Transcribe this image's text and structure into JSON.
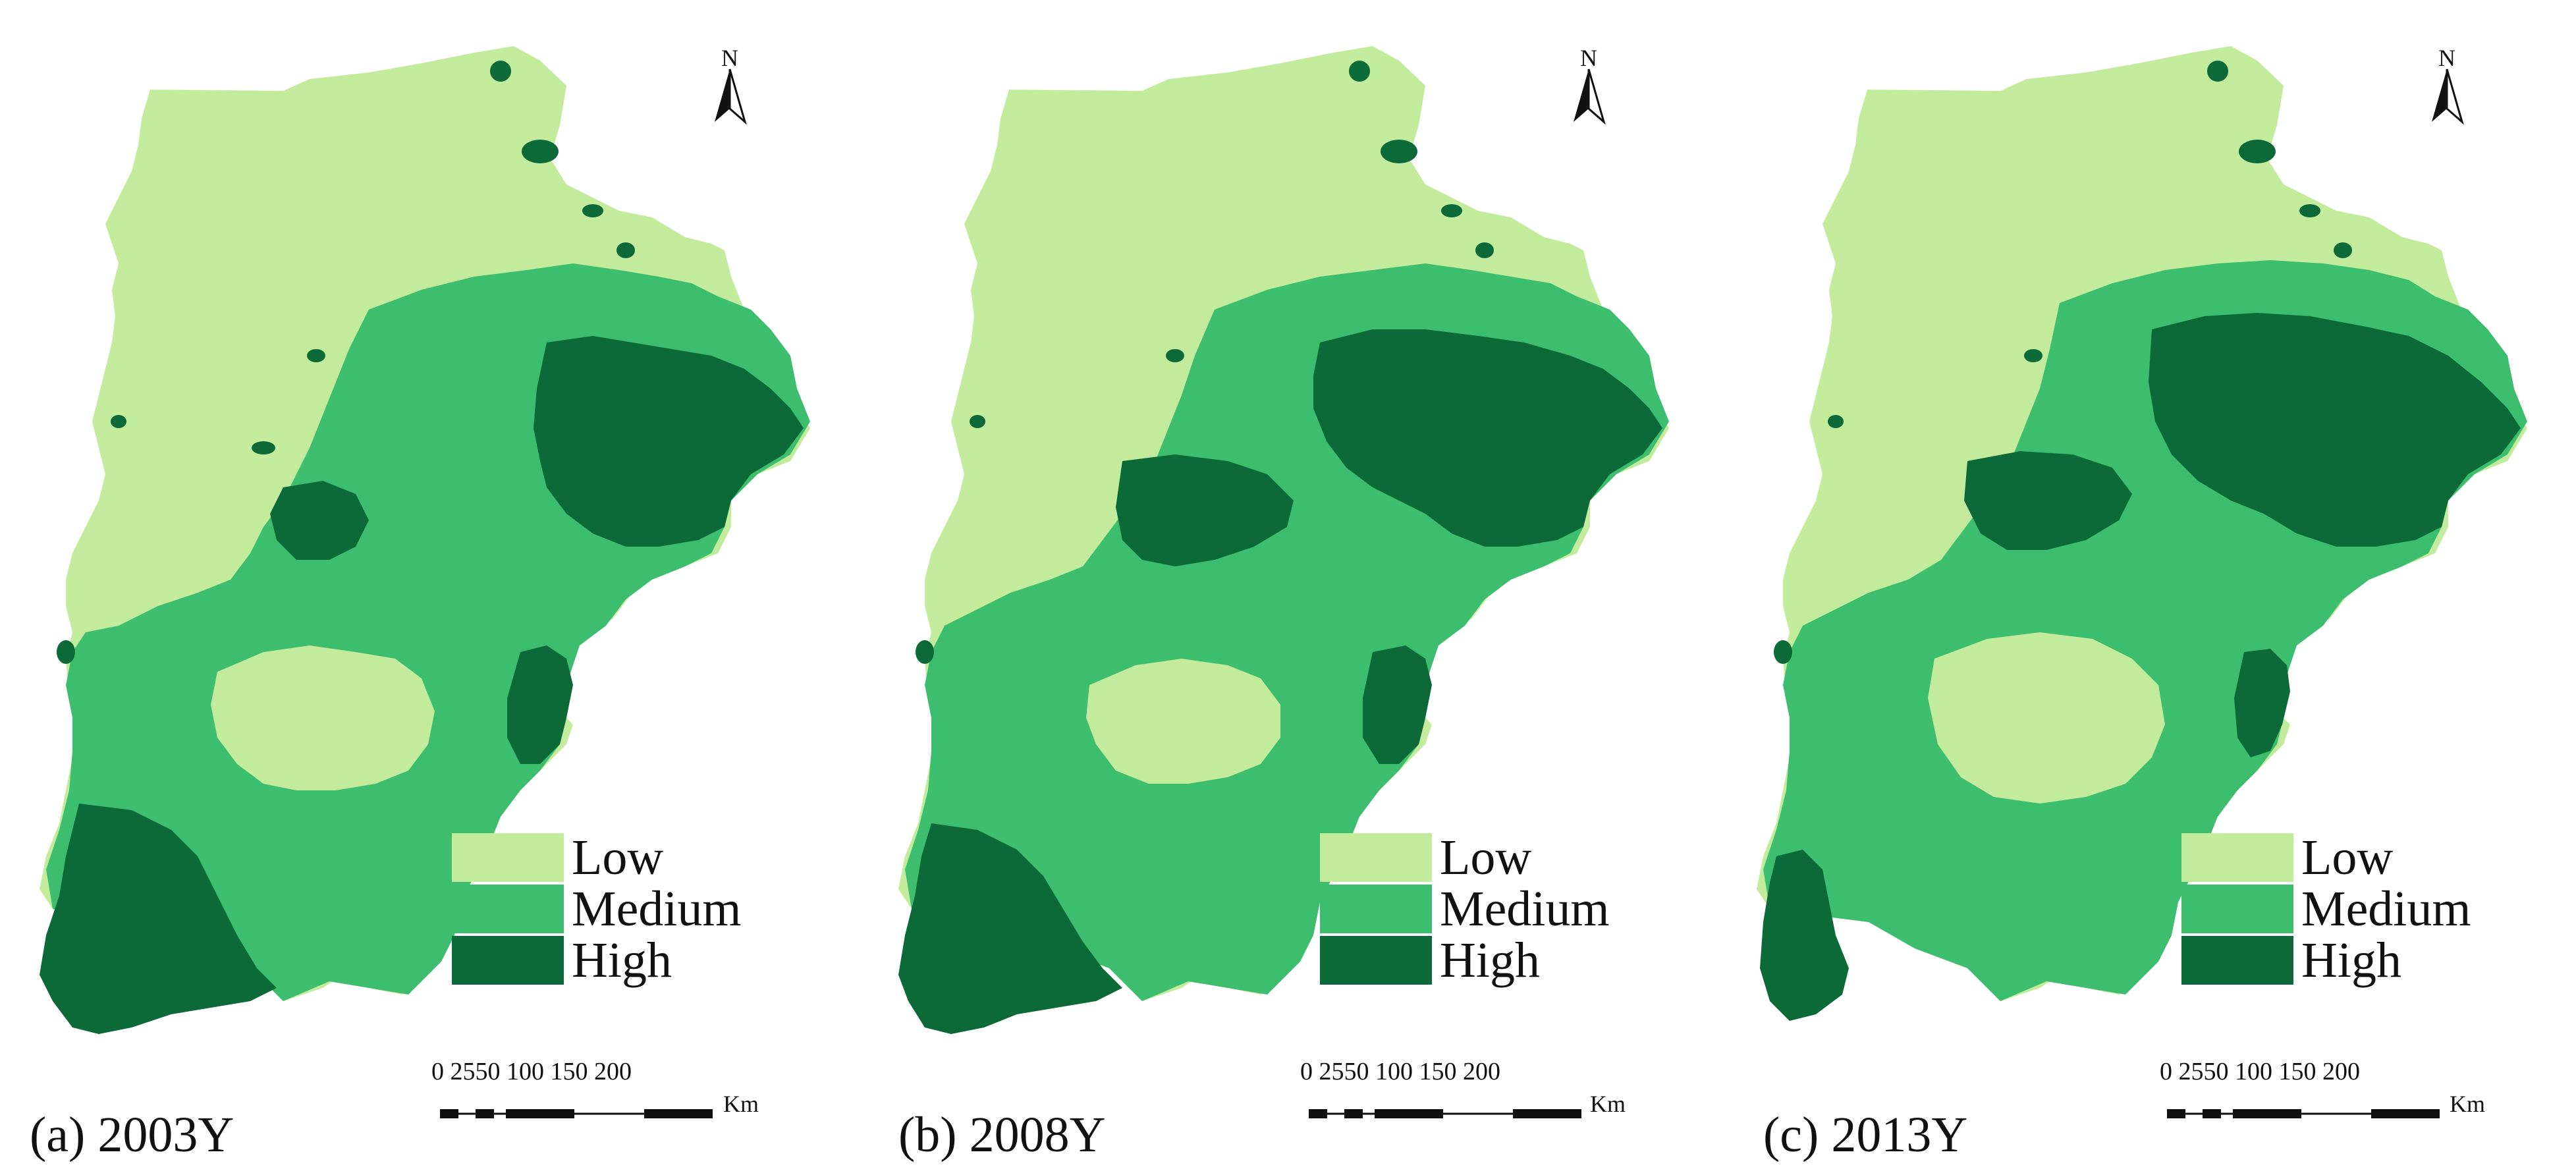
{
  "colors": {
    "low": "#c2eb9c",
    "medium": "#3cbe6e",
    "high": "#0b6a37",
    "text": "#111111"
  },
  "legend": [
    {
      "level": "low",
      "label": "Low"
    },
    {
      "level": "medium",
      "label": "Medium"
    },
    {
      "level": "high",
      "label": "High"
    }
  ],
  "north_arrow": {
    "label": "N"
  },
  "scale_bar": {
    "ticks": "0 2550   100   150  200",
    "unit": "Km"
  },
  "panels": [
    {
      "id": "a",
      "caption": "(a) 2003Y"
    },
    {
      "id": "b",
      "caption": "(b) 2008Y"
    },
    {
      "id": "c",
      "caption": "(c) 2013Y"
    }
  ]
}
